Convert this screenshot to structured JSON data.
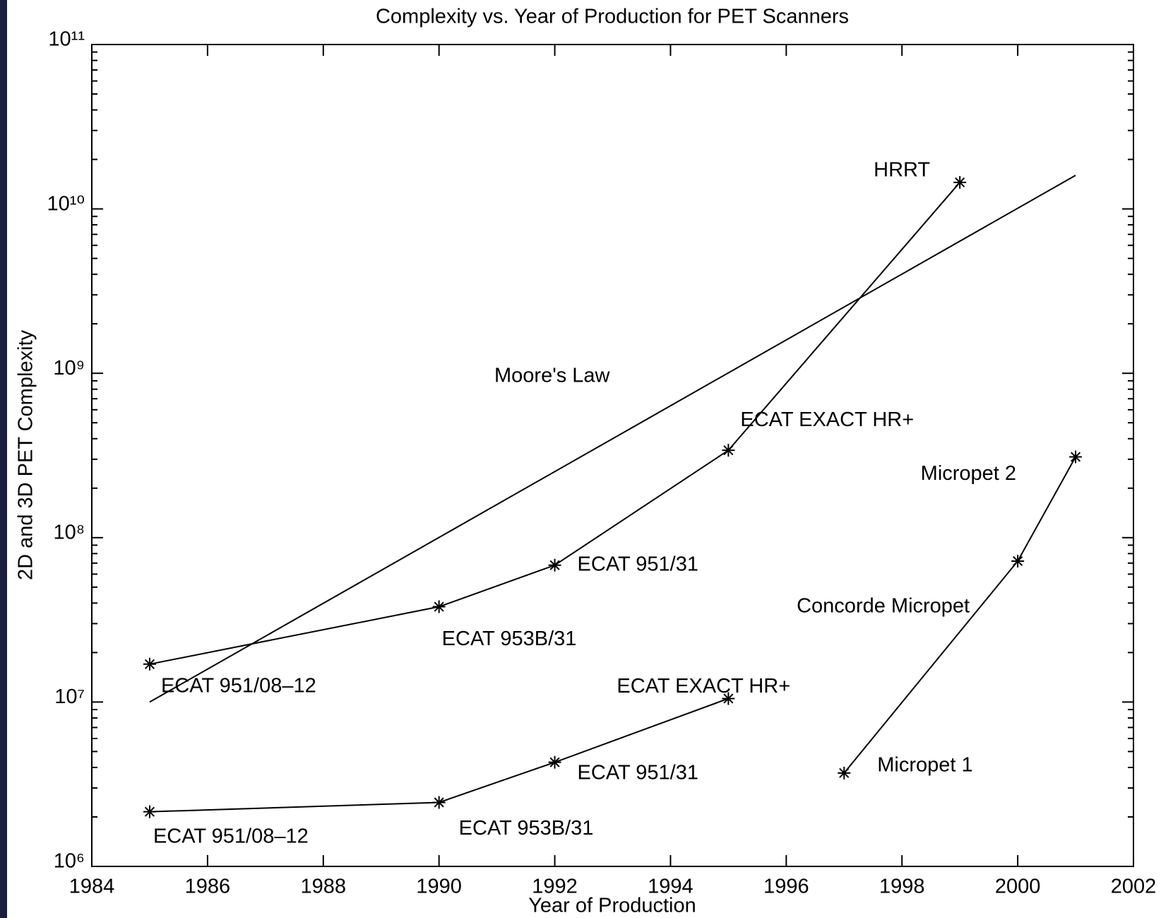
{
  "chart_data": {
    "type": "line",
    "title": "Complexity vs. Year of Production for PET Scanners",
    "xlabel": "Year of Production",
    "ylabel": "2D and 3D PET Complexity",
    "xlim": [
      1984,
      2002
    ],
    "xticks": [
      1984,
      1986,
      1988,
      1990,
      1992,
      1994,
      1996,
      1998,
      2000,
      2002
    ],
    "ylim": [
      1000000,
      100000000000
    ],
    "yscale": "log",
    "yticks": [
      {
        "value": 1000000,
        "label": "10⁶"
      },
      {
        "value": 10000000,
        "label": "10⁷"
      },
      {
        "value": 100000000,
        "label": "10⁸"
      },
      {
        "value": 1000000000,
        "label": "10⁹"
      },
      {
        "value": 10000000000,
        "label": "10¹⁰"
      },
      {
        "value": 100000000000,
        "label": "10¹¹"
      }
    ],
    "grid": false,
    "series": [
      {
        "name": "Moore's Law",
        "color": "#000000",
        "marker": "none",
        "x": [
          1985,
          2001
        ],
        "values": [
          10000000,
          16000000000
        ]
      },
      {
        "color": "#000000",
        "marker": "*",
        "x": [
          1985,
          1990,
          1992,
          1995,
          1999
        ],
        "values": [
          17000000,
          38000000,
          68000000,
          340000000,
          14500000000
        ],
        "point_labels": [
          "ECAT 951/08–12",
          "ECAT 953B/31",
          "ECAT 951/31",
          "ECAT EXACT HR+",
          "HRRT"
        ]
      },
      {
        "color": "#000000",
        "marker": "*",
        "x": [
          1985,
          1990,
          1992,
          1995
        ],
        "values": [
          2150000,
          2450000,
          4300000,
          10500000
        ],
        "point_labels": [
          "ECAT 951/08–12",
          "ECAT 953B/31",
          "ECAT 951/31",
          "ECAT EXACT HR+"
        ]
      },
      {
        "color": "#000000",
        "marker": "*",
        "x": [
          1997,
          2000,
          2001
        ],
        "values": [
          3700000,
          72000000,
          310000000
        ],
        "point_labels": [
          "Micropet 1",
          "Concorde Micropet",
          "Micropet 2"
        ]
      }
    ]
  }
}
